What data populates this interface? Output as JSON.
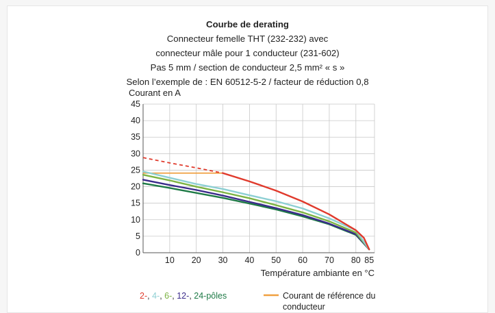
{
  "chart_data": {
    "type": "line",
    "title": "Courbe de derating",
    "subtitle_lines": [
      "Connecteur femelle THT (232-232) avec",
      "connecteur mâle pour 1 conducteur (231-602)",
      "Pas 5 mm / section de conducteur 2,5 mm² « s »",
      "Selon l’exemple de : EN 60512-5-2 / facteur de réduction 0,8"
    ],
    "ylabel": "Courant en A",
    "xlabel": "Température ambiante en °C",
    "xlim": [
      0,
      87
    ],
    "ylim": [
      0,
      45
    ],
    "x_ticks": [
      10,
      20,
      30,
      40,
      50,
      60,
      70,
      80,
      85
    ],
    "y_ticks": [
      0,
      5,
      10,
      15,
      20,
      25,
      30,
      35,
      40,
      45
    ],
    "x_gridlines": [
      0,
      10,
      20,
      30,
      40,
      50,
      60,
      70,
      80,
      87
    ],
    "grid": true,
    "series": [
      {
        "key": "2",
        "color": "#e03a2c",
        "dashed_x": [
          0,
          10,
          20,
          30
        ],
        "dashed_y": [
          28.8,
          27.2,
          25.7,
          24.1
        ],
        "x": [
          30,
          40,
          50,
          60,
          70,
          80,
          83,
          85
        ],
        "y": [
          24.1,
          21.6,
          18.8,
          15.5,
          11.6,
          6.8,
          4.5,
          1.0
        ]
      },
      {
        "key": "4",
        "color": "#8dcfd3",
        "x": [
          0,
          10,
          20,
          30,
          40,
          50,
          60,
          70,
          80,
          85
        ],
        "y": [
          24.6,
          22.7,
          20.8,
          19.3,
          17.4,
          15.6,
          13.4,
          10.4,
          6.8,
          1.0
        ]
      },
      {
        "key": "6",
        "color": "#7cb342",
        "x": [
          0,
          10,
          20,
          30,
          40,
          50,
          60,
          70,
          80,
          85
        ],
        "y": [
          23.6,
          21.9,
          20.0,
          18.3,
          16.5,
          14.4,
          12.2,
          9.5,
          6.1,
          1.0
        ]
      },
      {
        "key": "12",
        "color": "#3a2a8a",
        "x": [
          0,
          10,
          20,
          30,
          40,
          50,
          60,
          70,
          80,
          85
        ],
        "y": [
          22.1,
          20.5,
          19.0,
          17.3,
          15.4,
          13.5,
          11.4,
          8.8,
          5.6,
          1.0
        ]
      },
      {
        "key": "24",
        "color": "#1e7a46",
        "x": [
          0,
          10,
          20,
          30,
          40,
          50,
          60,
          70,
          80,
          85
        ],
        "y": [
          21.0,
          19.6,
          18.1,
          16.6,
          14.9,
          13.1,
          11.0,
          8.6,
          5.4,
          1.0
        ]
      }
    ],
    "reference": {
      "name": "Courant de référence du conducteur",
      "color": "#f0a040",
      "x": [
        0,
        30
      ],
      "y": [
        24.1,
        24.1
      ]
    },
    "legend": {
      "position": "bottom",
      "poles_parts": [
        {
          "text": "2-",
          "color": "#e03a2c"
        },
        {
          "text": ", ",
          "color": "#333333"
        },
        {
          "text": "4-",
          "color": "#8dcfd3"
        },
        {
          "text": ", ",
          "color": "#333333"
        },
        {
          "text": "6-",
          "color": "#7cb342"
        },
        {
          "text": ", ",
          "color": "#333333"
        },
        {
          "text": "12-",
          "color": "#3a2a8a"
        },
        {
          "text": ", ",
          "color": "#333333"
        },
        {
          "text": "24-pôles",
          "color": "#1e7a46"
        }
      ],
      "reference_lines": [
        "Courant de référence du",
        "conducteur"
      ]
    }
  }
}
